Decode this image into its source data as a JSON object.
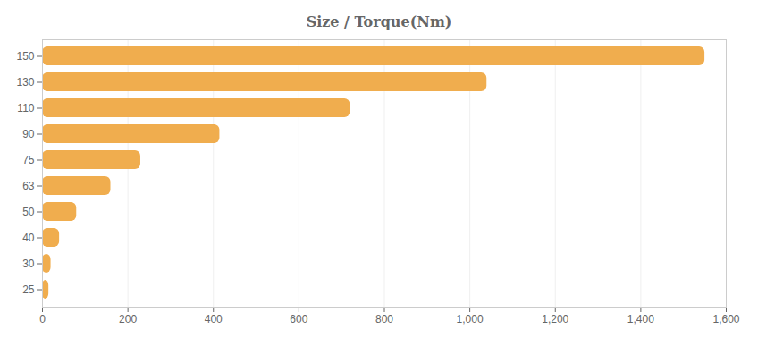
{
  "chart_data": {
    "type": "bar",
    "orientation": "horizontal",
    "title": "Size / Torque(Nm)",
    "categories": [
      "150",
      "130",
      "110",
      "90",
      "75",
      "63",
      "50",
      "40",
      "30",
      "25"
    ],
    "values": [
      1550,
      1040,
      720,
      415,
      230,
      160,
      80,
      40,
      20,
      15
    ],
    "color": "#f0ad4e",
    "xlim": [
      0,
      1600
    ],
    "xticks": [
      0,
      200,
      400,
      600,
      800,
      {
        "value": 1000,
        "label": "1,000"
      },
      {
        "value": 1200,
        "label": "1,200"
      },
      {
        "value": 1400,
        "label": "1,400"
      },
      {
        "value": 1600,
        "label": "1,600"
      }
    ],
    "grid": true
  }
}
